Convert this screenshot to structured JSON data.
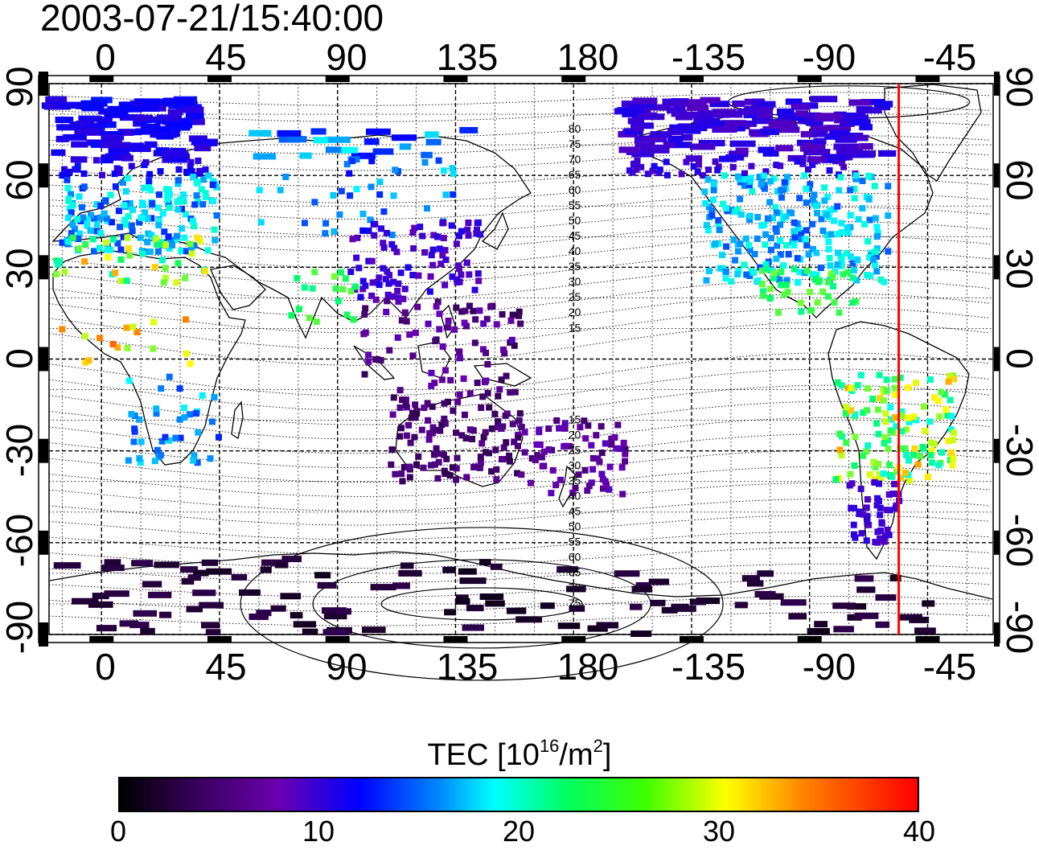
{
  "timestamp": "2003-07-21/15:40:00",
  "lon_ticks": [
    "0",
    "45",
    "90",
    "135",
    "180",
    "-135",
    "-90",
    "-45"
  ],
  "lat_ticks": [
    "90",
    "60",
    "30",
    "0",
    "-30",
    "-60",
    "-90"
  ],
  "map": {
    "lon_start": -20,
    "lon_end": 340,
    "lat_range": [
      -90,
      90
    ],
    "marker_longitude": -56,
    "marker_color": "#ff0000",
    "contour_labels": [
      "80",
      "75",
      "70",
      "65",
      "60",
      "55",
      "50",
      "45",
      "40",
      "35",
      "30",
      "25",
      "20",
      "15",
      "15",
      "20",
      "25",
      "30",
      "35",
      "40",
      "45",
      "50",
      "55",
      "60",
      "65",
      "70",
      "75"
    ]
  },
  "colorbar": {
    "title": "TEC  [10",
    "exp": "16",
    "unit_mid": "/m",
    "unit_exp": "2",
    "unit_end": "]",
    "range": [
      0,
      40
    ],
    "ticks": [
      "0",
      "10",
      "20",
      "30",
      "40"
    ],
    "colormap": [
      "#000000",
      "#6a00b0",
      "#0000ff",
      "#00ffff",
      "#00ff60",
      "#ffff00",
      "#ff0000"
    ]
  }
}
